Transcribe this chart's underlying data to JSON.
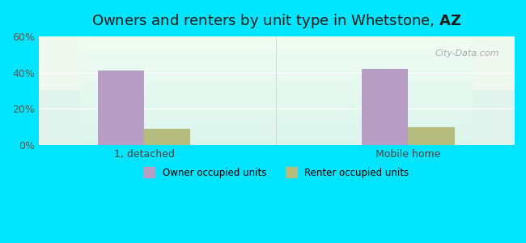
{
  "title": "Owners and renters by unit type in Whetstone, AZ",
  "title_bold_part": "AZ",
  "categories": [
    "1, detached",
    "Mobile home"
  ],
  "owner_values": [
    41,
    42
  ],
  "renter_values": [
    9,
    10
  ],
  "owner_color": "#b89ec4",
  "renter_color": "#b5bc80",
  "ylim": [
    0,
    60
  ],
  "yticks": [
    0,
    20,
    40,
    60
  ],
  "ytick_labels": [
    "0%",
    "20%",
    "40%",
    "60%"
  ],
  "legend_owner": "Owner occupied units",
  "legend_renter": "Renter occupied units",
  "bar_width": 0.35,
  "background_top": "#e8f5e9",
  "background_bottom": "#e0f4f0",
  "outer_color": "#00e5ff",
  "watermark": "City-Data.com"
}
